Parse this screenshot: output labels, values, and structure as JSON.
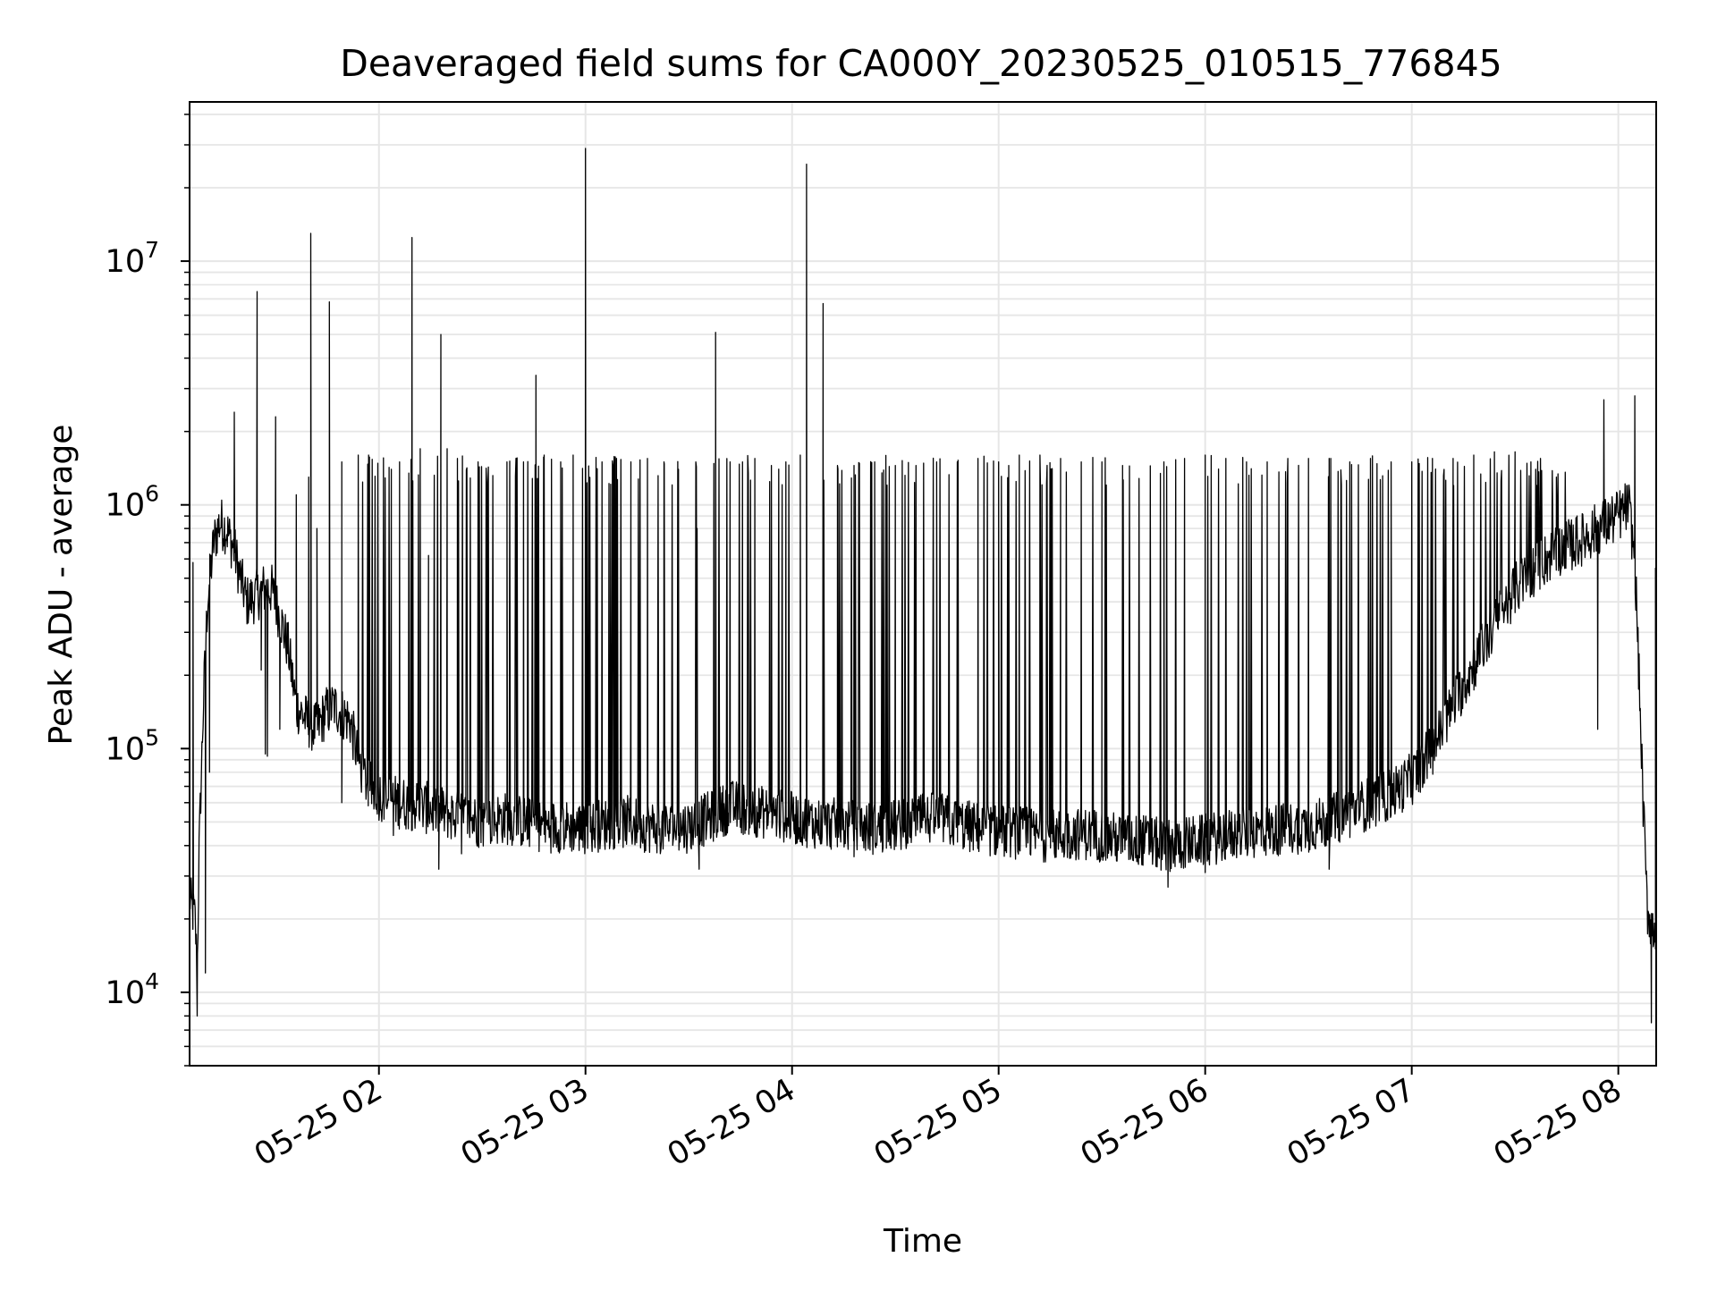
{
  "chart_data": {
    "type": "line",
    "title": "Deaveraged field sums for CA000Y_20230525_010515_776845",
    "xlabel": "Time",
    "ylabel": "Peak ADU - average",
    "yscale": "log",
    "ylim": [
      5000,
      45000000
    ],
    "xlim": [
      "05-25 01:05",
      "05-25 08:11"
    ],
    "grid": true,
    "legend": "none",
    "x_tick_labels": [
      "05-25 02",
      "05-25 03",
      "05-25 04",
      "05-25 05",
      "05-25 06",
      "05-25 07",
      "05-25 08"
    ],
    "x_tick_hours": [
      2,
      3,
      4,
      5,
      6,
      7,
      8
    ],
    "y_tick_labels": [
      {
        "base": "10",
        "exp": "4",
        "value": 10000
      },
      {
        "base": "10",
        "exp": "5",
        "value": 100000
      },
      {
        "base": "10",
        "exp": "6",
        "value": 1000000
      },
      {
        "base": "10",
        "exp": "7",
        "value": 10000000
      }
    ],
    "line_color": "#000000",
    "grid_color": "#e6e6e6",
    "series": [
      {
        "x_hours": [
          1.083,
          1.095,
          1.11,
          1.12,
          1.13,
          1.15,
          1.17,
          1.2,
          1.23,
          1.26,
          1.3,
          1.33,
          1.36,
          1.4,
          1.44,
          1.48,
          1.52,
          1.56,
          1.6,
          1.65,
          1.7,
          1.74,
          1.78,
          1.82,
          1.86,
          1.9,
          1.95,
          2.0,
          2.05,
          2.1,
          2.2,
          2.3,
          2.4,
          2.5,
          2.6,
          2.7,
          2.8,
          2.9,
          3.0,
          3.1,
          3.2,
          3.3,
          3.4,
          3.5,
          3.6,
          3.7,
          3.8,
          3.9,
          4.0,
          4.1,
          4.2,
          4.3,
          4.4,
          4.5,
          4.6,
          4.7,
          4.8,
          4.9,
          5.0,
          5.1,
          5.2,
          5.3,
          5.4,
          5.5,
          5.6,
          5.7,
          5.8,
          5.9,
          6.0,
          6.1,
          6.2,
          6.3,
          6.4,
          6.5,
          6.6,
          6.7,
          6.8,
          6.9,
          7.0,
          7.1,
          7.2,
          7.3,
          7.4,
          7.5,
          7.6,
          7.7,
          7.8,
          7.9,
          8.0,
          8.05,
          8.08,
          8.1,
          8.12,
          8.14,
          8.17,
          8.18
        ],
        "baseline": [
          25000,
          22000,
          20000,
          12000,
          40000,
          150000,
          400000,
          700000,
          850000,
          800000,
          650000,
          500000,
          400000,
          420000,
          450000,
          450000,
          350000,
          260000,
          150000,
          130000,
          120000,
          140000,
          150000,
          140000,
          130000,
          90000,
          70000,
          65000,
          62000,
          60000,
          58000,
          55000,
          52000,
          50000,
          52000,
          50000,
          48000,
          48000,
          47000,
          49000,
          50000,
          48000,
          47000,
          48000,
          52000,
          58000,
          56000,
          54000,
          52000,
          50000,
          49000,
          48000,
          47000,
          48000,
          50000,
          52000,
          49000,
          47000,
          46000,
          45000,
          44000,
          44000,
          45000,
          44000,
          42000,
          42000,
          40000,
          41000,
          42000,
          44000,
          45000,
          46000,
          47000,
          48000,
          50000,
          55000,
          60000,
          65000,
          75000,
          100000,
          150000,
          220000,
          320000,
          450000,
          550000,
          650000,
          700000,
          800000,
          900000,
          1000000,
          600000,
          200000,
          60000,
          22000,
          18000,
          20000
        ]
      }
    ],
    "spikes": [
      {
        "t": 1.1,
        "v": 580000
      },
      {
        "t": 1.18,
        "v": 80000
      },
      {
        "t": 1.3,
        "v": 2400000
      },
      {
        "t": 1.41,
        "v": 7500000
      },
      {
        "t": 1.45,
        "v": 95000
      },
      {
        "t": 1.5,
        "v": 2300000
      },
      {
        "t": 1.6,
        "v": 1100000
      },
      {
        "t": 1.66,
        "v": 1300000
      },
      {
        "t": 1.67,
        "v": 13000000
      },
      {
        "t": 1.7,
        "v": 800000
      },
      {
        "t": 1.76,
        "v": 6800000
      },
      {
        "t": 1.82,
        "v": 1500000
      },
      {
        "t": 1.9,
        "v": 1600000
      },
      {
        "t": 1.95,
        "v": 1600000
      },
      {
        "t": 2.06,
        "v": 1400000
      },
      {
        "t": 2.1,
        "v": 1500000
      },
      {
        "t": 2.16,
        "v": 12500000
      },
      {
        "t": 2.2,
        "v": 1700000
      },
      {
        "t": 2.24,
        "v": 620000
      },
      {
        "t": 2.3,
        "v": 5000000
      },
      {
        "t": 2.33,
        "v": 1700000
      },
      {
        "t": 2.38,
        "v": 1550000
      },
      {
        "t": 2.48,
        "v": 1500000
      },
      {
        "t": 2.55,
        "v": 270000
      },
      {
        "t": 2.62,
        "v": 1500000
      },
      {
        "t": 2.7,
        "v": 1500000
      },
      {
        "t": 2.76,
        "v": 3400000
      },
      {
        "t": 2.8,
        "v": 1600000
      },
      {
        "t": 2.88,
        "v": 1500000
      },
      {
        "t": 2.94,
        "v": 1600000
      },
      {
        "t": 3.0,
        "v": 29000000
      },
      {
        "t": 3.08,
        "v": 1500000
      },
      {
        "t": 3.15,
        "v": 1550000
      },
      {
        "t": 3.22,
        "v": 1500000
      },
      {
        "t": 3.3,
        "v": 1550000
      },
      {
        "t": 3.38,
        "v": 1500000
      },
      {
        "t": 3.45,
        "v": 1400000
      },
      {
        "t": 3.54,
        "v": 800000
      },
      {
        "t": 3.63,
        "v": 5100000
      },
      {
        "t": 3.7,
        "v": 1500000
      },
      {
        "t": 3.76,
        "v": 1500000
      },
      {
        "t": 3.82,
        "v": 1550000
      },
      {
        "t": 3.9,
        "v": 1450000
      },
      {
        "t": 3.97,
        "v": 1500000
      },
      {
        "t": 4.04,
        "v": 1600000
      },
      {
        "t": 4.07,
        "v": 25000000
      },
      {
        "t": 4.15,
        "v": 6700000
      },
      {
        "t": 4.22,
        "v": 1450000
      },
      {
        "t": 4.3,
        "v": 1450000
      },
      {
        "t": 4.4,
        "v": 1500000
      },
      {
        "t": 4.5,
        "v": 1450000
      },
      {
        "t": 4.6,
        "v": 1450000
      },
      {
        "t": 4.7,
        "v": 1500000
      },
      {
        "t": 4.8,
        "v": 1500000
      },
      {
        "t": 4.9,
        "v": 1550000
      },
      {
        "t": 5.0,
        "v": 1500000
      },
      {
        "t": 5.1,
        "v": 1600000
      },
      {
        "t": 5.2,
        "v": 1600000
      },
      {
        "t": 5.3,
        "v": 1550000
      },
      {
        "t": 5.4,
        "v": 1500000
      },
      {
        "t": 5.5,
        "v": 1500000
      },
      {
        "t": 5.6,
        "v": 1450000
      },
      {
        "t": 5.8,
        "v": 1500000
      },
      {
        "t": 5.9,
        "v": 1550000
      },
      {
        "t": 6.0,
        "v": 1600000
      },
      {
        "t": 6.1,
        "v": 1550000
      },
      {
        "t": 6.2,
        "v": 1500000
      },
      {
        "t": 6.3,
        "v": 1500000
      },
      {
        "t": 6.4,
        "v": 1550000
      },
      {
        "t": 6.5,
        "v": 1550000
      },
      {
        "t": 6.6,
        "v": 1550000
      },
      {
        "t": 6.7,
        "v": 1500000
      },
      {
        "t": 6.8,
        "v": 1550000
      },
      {
        "t": 6.9,
        "v": 1500000
      },
      {
        "t": 7.0,
        "v": 1500000
      },
      {
        "t": 7.1,
        "v": 1550000
      },
      {
        "t": 7.2,
        "v": 1550000
      },
      {
        "t": 7.3,
        "v": 1600000
      },
      {
        "t": 7.4,
        "v": 1650000
      },
      {
        "t": 7.5,
        "v": 1650000
      },
      {
        "t": 7.6,
        "v": 1400000
      },
      {
        "t": 7.7,
        "v": 1300000
      },
      {
        "t": 7.8,
        "v": 900000
      },
      {
        "t": 7.93,
        "v": 2700000
      },
      {
        "t": 8.08,
        "v": 2800000
      },
      {
        "t": 8.18,
        "v": 550000
      }
    ],
    "dips": [
      {
        "t": 1.12,
        "v": 8000
      },
      {
        "t": 1.16,
        "v": 12000
      },
      {
        "t": 1.43,
        "v": 210000
      },
      {
        "t": 1.46,
        "v": 93000
      },
      {
        "t": 1.52,
        "v": 120000
      },
      {
        "t": 1.82,
        "v": 60000
      },
      {
        "t": 2.07,
        "v": 44000
      },
      {
        "t": 2.29,
        "v": 32000
      },
      {
        "t": 2.4,
        "v": 37000
      },
      {
        "t": 3.55,
        "v": 32000
      },
      {
        "t": 4.3,
        "v": 36000
      },
      {
        "t": 5.5,
        "v": 36000
      },
      {
        "t": 5.82,
        "v": 27000
      },
      {
        "t": 6.0,
        "v": 31000
      },
      {
        "t": 6.6,
        "v": 32000
      },
      {
        "t": 7.9,
        "v": 120000
      },
      {
        "t": 8.16,
        "v": 7500
      },
      {
        "t": 8.18,
        "v": 15000
      }
    ]
  }
}
